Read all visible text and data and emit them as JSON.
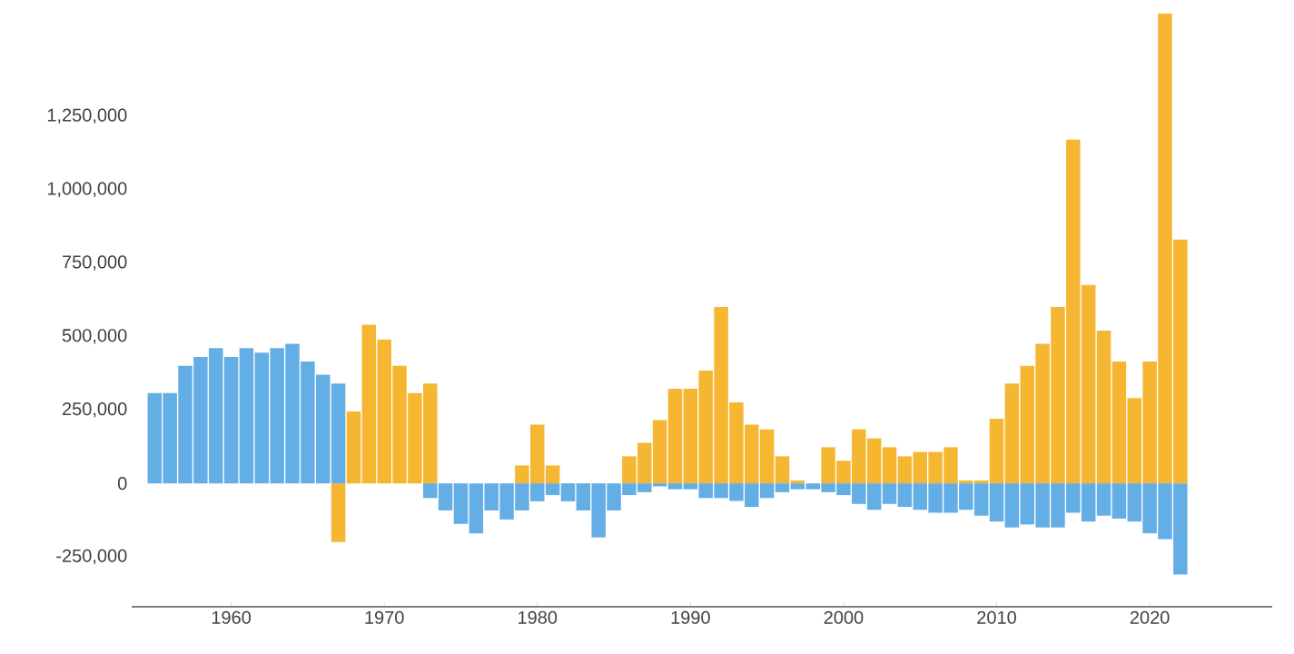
{
  "chart_data": {
    "type": "bar",
    "x": [
      1955,
      1956,
      1957,
      1958,
      1959,
      1960,
      1961,
      1962,
      1963,
      1964,
      1965,
      1966,
      1967,
      1968,
      1969,
      1970,
      1971,
      1972,
      1973,
      1974,
      1975,
      1976,
      1977,
      1978,
      1979,
      1980,
      1981,
      1982,
      1983,
      1984,
      1985,
      1986,
      1987,
      1988,
      1989,
      1990,
      1991,
      1992,
      1993,
      1994,
      1995,
      1996,
      1997,
      1998,
      1999,
      2000,
      2001,
      2002,
      2003,
      2004,
      2005,
      2006,
      2007,
      2008,
      2009,
      2010,
      2011,
      2012,
      2013,
      2014,
      2015,
      2016,
      2017,
      2018,
      2019,
      2020,
      2021,
      2022
    ],
    "series": [
      {
        "color": "#64aee6",
        "values": [
          307000,
          307000,
          400000,
          430000,
          460000,
          430000,
          460000,
          445000,
          460000,
          475000,
          415000,
          370000,
          340000,
          null,
          null,
          null,
          null,
          null,
          -50000,
          -92000,
          -138000,
          -170000,
          -92000,
          -123000,
          -92000,
          -61000,
          -40000,
          -61000,
          -92000,
          -184000,
          -92000,
          -40000,
          -30000,
          -10000,
          -20000,
          -20000,
          -50000,
          -50000,
          -60000,
          -80000,
          -50000,
          -30000,
          -20000,
          -20000,
          -30000,
          -40000,
          -70000,
          -90000,
          -70000,
          -80000,
          -90000,
          -100000,
          -100000,
          -90000,
          -110000,
          -130000,
          -150000,
          -140000,
          -150000,
          -150000,
          -100000,
          -130000,
          -110000,
          -120000,
          -130000,
          -170000,
          -190000,
          -310000
        ]
      },
      {
        "color": "#f5b731",
        "values": [
          null,
          null,
          null,
          null,
          null,
          null,
          null,
          null,
          null,
          null,
          null,
          null,
          -200000,
          245000,
          540000,
          490000,
          400000,
          307000,
          340000,
          null,
          null,
          null,
          null,
          null,
          61000,
          200000,
          61000,
          null,
          null,
          null,
          null,
          92000,
          138000,
          215000,
          322000,
          322000,
          384000,
          600000,
          276000,
          200000,
          184000,
          92000,
          10000,
          null,
          123000,
          77000,
          184000,
          153000,
          123000,
          92000,
          107000,
          107000,
          123000,
          10000,
          10000,
          220000,
          340000,
          400000,
          475000,
          600000,
          1170000,
          675000,
          520000,
          415000,
          290000,
          415000,
          1600000,
          830000
        ]
      }
    ],
    "xlim": [
      1953.5,
      2028
    ],
    "xticks": [
      1960,
      1970,
      1980,
      1990,
      2000,
      2010,
      2020
    ],
    "ylim": [
      -420000,
      1600000
    ],
    "yticks": [
      {
        "value": -250000,
        "label": "-250,000"
      },
      {
        "value": 0,
        "label": "0"
      },
      {
        "value": 250000,
        "label": "250,000"
      },
      {
        "value": 500000,
        "label": "500,000"
      },
      {
        "value": 750000,
        "label": "750,000"
      },
      {
        "value": 1000000,
        "label": "1,000,000"
      },
      {
        "value": 1250000,
        "label": "1,250,000"
      }
    ],
    "grid": false,
    "stacked": true
  }
}
